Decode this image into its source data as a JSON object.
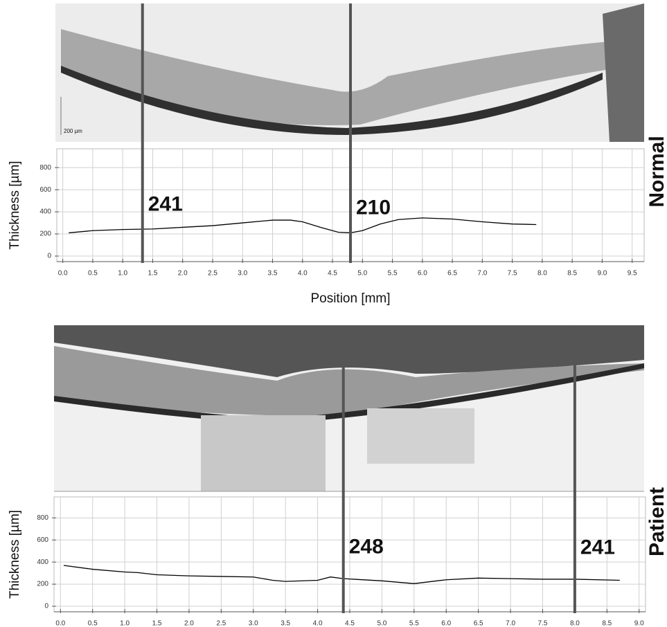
{
  "chart_data": [
    {
      "type": "line",
      "label": "Normal",
      "ylabel": "Thickness [µm]",
      "xlabel": "Position [mm]",
      "image_scale_label": "200 µm",
      "color": "#000000",
      "grid": true,
      "x": [
        0.1,
        0.5,
        1.0,
        1.5,
        2.0,
        2.5,
        3.0,
        3.5,
        3.8,
        4.0,
        4.3,
        4.6,
        4.8,
        5.0,
        5.3,
        5.6,
        6.0,
        6.5,
        7.0,
        7.5,
        7.9
      ],
      "values": [
        210,
        230,
        240,
        245,
        260,
        275,
        300,
        325,
        325,
        310,
        260,
        215,
        210,
        230,
        290,
        330,
        345,
        335,
        310,
        290,
        285
      ],
      "xlim": [
        -0.1,
        9.7
      ],
      "ylim": [
        -50,
        970
      ],
      "xticks": [
        {
          "value": 0,
          "label": "0.0"
        },
        0.5,
        {
          "value": 1,
          "label": "1.0"
        },
        1.5,
        {
          "value": 2,
          "label": "2.0"
        },
        2.5,
        {
          "value": 3,
          "label": "3.0"
        },
        3.5,
        {
          "value": 4,
          "label": "4.0"
        },
        4.5,
        {
          "value": 5,
          "label": "5.0"
        },
        5.5,
        {
          "value": 6,
          "label": "6.0"
        },
        6.5,
        {
          "value": 7,
          "label": "7.0"
        },
        7.5,
        {
          "value": 8,
          "label": "8.0"
        },
        8.5,
        {
          "value": 9,
          "label": "9.0"
        },
        9.5
      ],
      "yticks": [
        0,
        200,
        400,
        600,
        800
      ],
      "markers": [
        {
          "x": 1.33,
          "value": 241
        },
        {
          "x": 4.8,
          "value": 210
        }
      ]
    },
    {
      "type": "line",
      "label": "Patient",
      "ylabel": "Thickness [µm]",
      "color": "#000000",
      "grid": true,
      "x": [
        0.05,
        0.5,
        1.0,
        1.2,
        1.5,
        2.0,
        2.5,
        3.0,
        3.3,
        3.5,
        4.0,
        4.2,
        4.4,
        5.0,
        5.5,
        6.0,
        6.5,
        7.0,
        7.5,
        8.0,
        8.7
      ],
      "values": [
        370,
        335,
        310,
        305,
        285,
        275,
        270,
        265,
        235,
        225,
        235,
        265,
        250,
        230,
        205,
        240,
        255,
        250,
        245,
        245,
        235
      ],
      "xlim": [
        -0.1,
        9.1
      ],
      "ylim": [
        -50,
        990
      ],
      "xticks": [
        {
          "value": 0,
          "label": "0.0"
        },
        0.5,
        {
          "value": 1,
          "label": "1.0"
        },
        1.5,
        {
          "value": 2,
          "label": "2.0"
        },
        2.5,
        {
          "value": 3,
          "label": "3.0"
        },
        3.5,
        {
          "value": 4,
          "label": "4.0"
        },
        4.5,
        {
          "value": 5,
          "label": "5.0"
        },
        5.5,
        {
          "value": 6,
          "label": "6.0"
        },
        6.5,
        {
          "value": 7,
          "label": "7.0"
        },
        7.5,
        {
          "value": 8,
          "label": "8.0"
        },
        8.5,
        {
          "value": 9,
          "label": "9.0"
        }
      ],
      "yticks": [
        0,
        200,
        400,
        600,
        800
      ],
      "markers": [
        {
          "x": 4.4,
          "value": 248
        },
        {
          "x": 8.0,
          "value": 241
        }
      ]
    }
  ]
}
